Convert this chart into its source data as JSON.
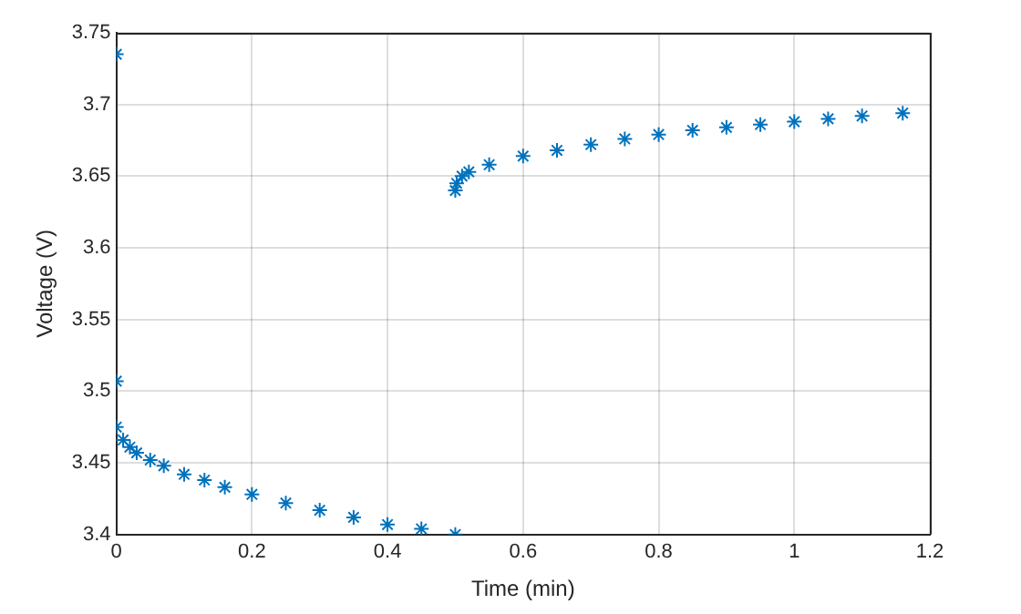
{
  "chart_data": {
    "type": "scatter",
    "xlabel": "Time (min)",
    "ylabel": "Voltage (V)",
    "xlim": [
      0,
      1.2
    ],
    "xticks": [
      0,
      0.2,
      0.4,
      0.6,
      0.8,
      1,
      1.2
    ],
    "ylim": [
      3.4,
      3.75
    ],
    "yticks": [
      3.4,
      3.45,
      3.5,
      3.55,
      3.6,
      3.65,
      3.7,
      3.75
    ],
    "grid": true,
    "legend": false,
    "marker": "cross",
    "series": [
      {
        "color": "#0072bd",
        "x": [
          0,
          0,
          0,
          0.01,
          0.02,
          0.03,
          0.05,
          0.07,
          0.1,
          0.13,
          0.16,
          0.2,
          0.25,
          0.3,
          0.35,
          0.4,
          0.45,
          0.5,
          0.5,
          0.502,
          0.51,
          0.52,
          0.55,
          0.6,
          0.65,
          0.7,
          0.75,
          0.8,
          0.85,
          0.9,
          0.95,
          1,
          1.05,
          1.1,
          1.16
        ],
        "values": [
          3.735,
          3.507,
          3.475,
          3.466,
          3.461,
          3.457,
          3.452,
          3.448,
          3.442,
          3.438,
          3.433,
          3.428,
          3.422,
          3.417,
          3.412,
          3.407,
          3.404,
          3.4,
          3.64,
          3.645,
          3.65,
          3.653,
          3.658,
          3.664,
          3.668,
          3.672,
          3.676,
          3.679,
          3.682,
          3.684,
          3.686,
          3.688,
          3.69,
          3.692,
          3.694
        ]
      }
    ]
  }
}
